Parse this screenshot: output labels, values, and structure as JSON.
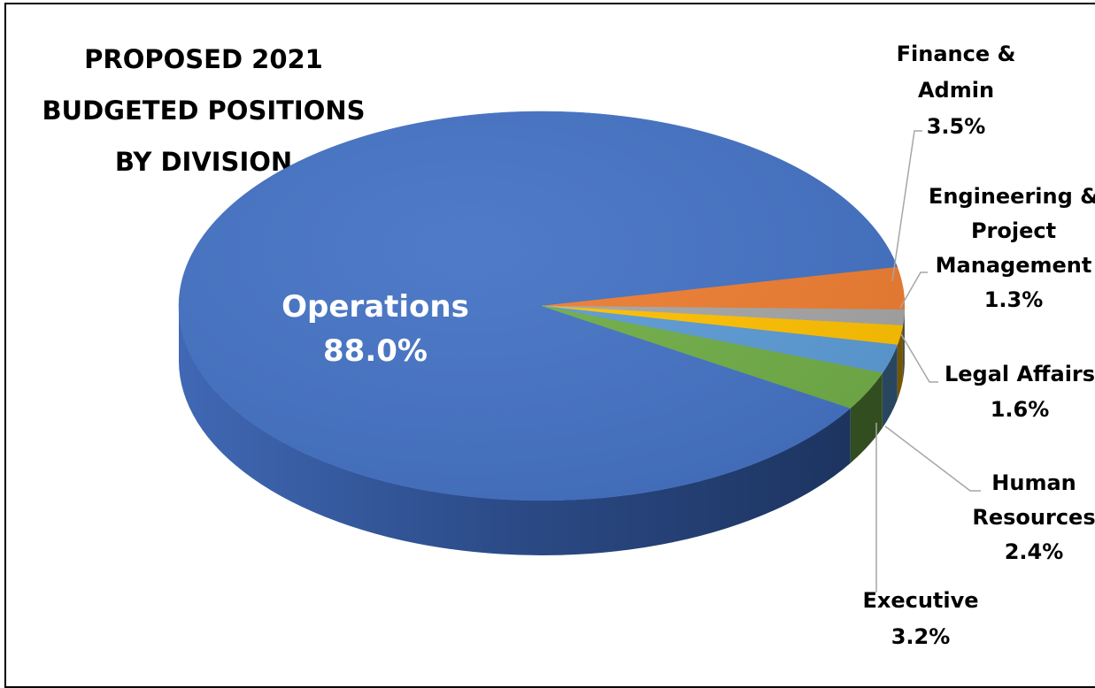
{
  "chart_data": {
    "type": "pie",
    "title_lines": [
      "PROPOSED 2021",
      "BUDGETED POSITIONS",
      "BY DIVISION"
    ],
    "slices": [
      {
        "name": "Operations",
        "label_lines": [
          "Operations"
        ],
        "value": 88.0,
        "value_label": "88.0%",
        "color": "#4472C4"
      },
      {
        "name": "Finance & Admin",
        "label_lines": [
          "Finance &",
          "Admin"
        ],
        "value": 3.5,
        "value_label": "3.5%",
        "color": "#ED7D31"
      },
      {
        "name": "Engineering & Project Management",
        "label_lines": [
          "Engineering &",
          "Project",
          "Management"
        ],
        "value": 1.3,
        "value_label": "1.3%",
        "color": "#A5A5A5"
      },
      {
        "name": "Legal Affairs",
        "label_lines": [
          "Legal Affairs"
        ],
        "value": 1.6,
        "value_label": "1.6%",
        "color": "#FFC000"
      },
      {
        "name": "Human Resources",
        "label_lines": [
          "Human",
          "Resources"
        ],
        "value": 2.4,
        "value_label": "2.4%",
        "color": "#5B9BD5"
      },
      {
        "name": "Executive",
        "label_lines": [
          "Executive"
        ],
        "value": 3.2,
        "value_label": "3.2%",
        "color": "#70AD47"
      }
    ],
    "legend": "none",
    "style": "3d-pie"
  }
}
